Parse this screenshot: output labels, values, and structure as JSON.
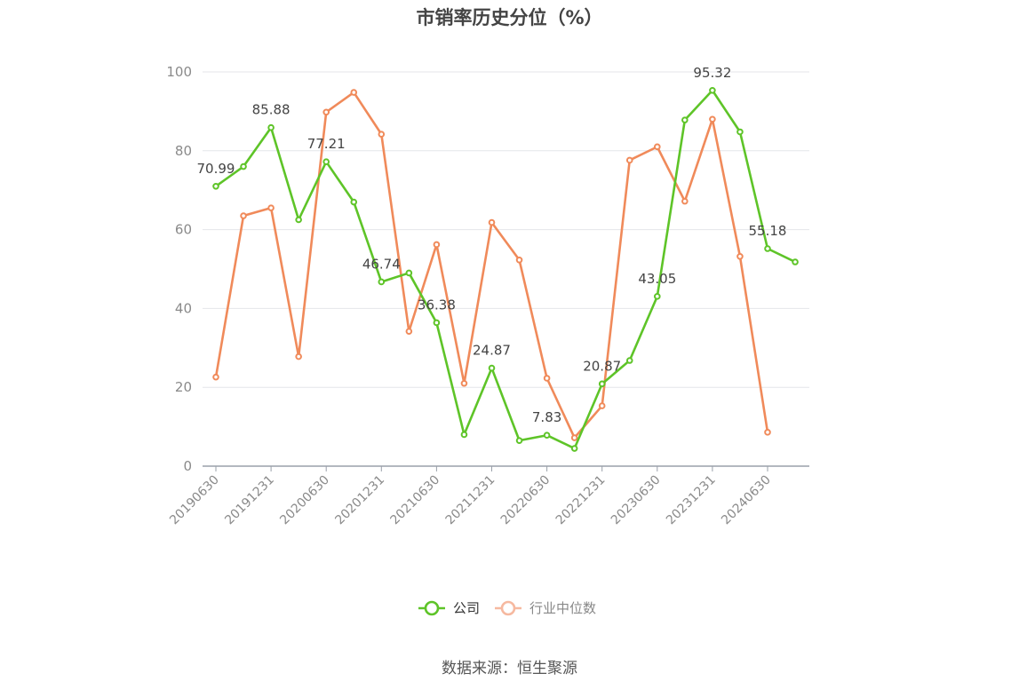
{
  "title": "市销率历史分位（%）",
  "source": "数据来源：恒生聚源",
  "colors": {
    "company": "#5ec428",
    "industry": "#f08a5a",
    "industry_legend": "#f6b9a0",
    "grid": "#e4e6ea",
    "axis": "#9aa0aa"
  },
  "chart_data": {
    "type": "line",
    "title": "市销率历史分位（%）",
    "ylim": [
      0,
      100
    ],
    "yticks": [
      0,
      20,
      40,
      60,
      80,
      100
    ],
    "x": [
      "20190630",
      "20190930",
      "20191231",
      "20200331",
      "20200630",
      "20200930",
      "20201231",
      "20210331",
      "20210630",
      "20210930",
      "20211231",
      "20220331",
      "20220630",
      "20220930",
      "20221231",
      "20230331",
      "20230630",
      "20230930",
      "20231231",
      "20240331",
      "20240630",
      "20240930"
    ],
    "xtick_labels": [
      "20190630",
      "20191231",
      "20200630",
      "20201231",
      "20210630",
      "20211231",
      "20220630",
      "20221231",
      "20230630",
      "20231231",
      "20240630"
    ],
    "series": [
      {
        "name": "公司",
        "values": [
          70.99,
          76.0,
          85.88,
          62.5,
          77.21,
          67.0,
          46.74,
          49.0,
          36.38,
          8.0,
          24.87,
          6.5,
          7.83,
          4.5,
          20.87,
          26.8,
          43.05,
          87.8,
          95.32,
          84.8,
          55.18,
          51.8
        ],
        "labels": [
          {
            "index": 0,
            "text": "70.99"
          },
          {
            "index": 2,
            "text": "85.88"
          },
          {
            "index": 4,
            "text": "77.21"
          },
          {
            "index": 6,
            "text": "46.74"
          },
          {
            "index": 8,
            "text": "36.38"
          },
          {
            "index": 10,
            "text": "24.87"
          },
          {
            "index": 12,
            "text": "7.83"
          },
          {
            "index": 14,
            "text": "20.87"
          },
          {
            "index": 16,
            "text": "43.05"
          },
          {
            "index": 18,
            "text": "95.32"
          },
          {
            "index": 20,
            "text": "55.18"
          }
        ]
      },
      {
        "name": "行业中位数",
        "values": [
          22.6,
          63.5,
          65.5,
          27.8,
          89.8,
          94.8,
          84.2,
          34.2,
          56.2,
          21.0,
          61.8,
          52.3,
          22.3,
          7.2,
          15.3,
          77.6,
          81.0,
          67.2,
          88.0,
          53.2,
          8.6,
          null
        ]
      }
    ],
    "legend": {
      "position": "bottom-center",
      "items": [
        "公司",
        "行业中位数"
      ]
    }
  }
}
